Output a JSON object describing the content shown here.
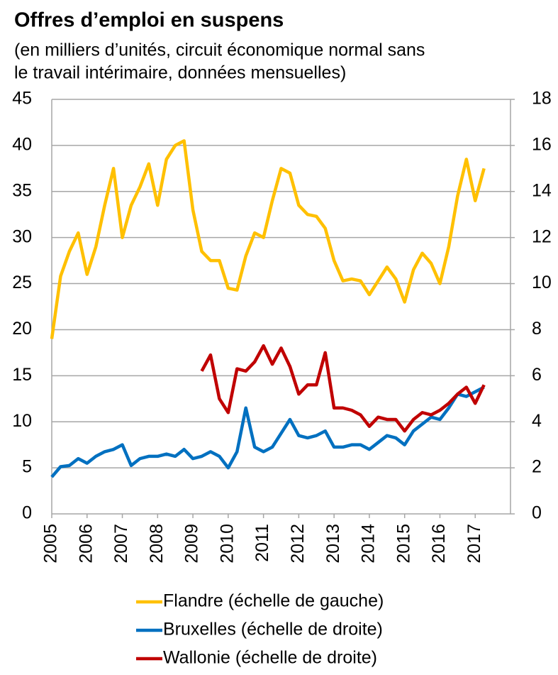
{
  "chart_data": {
    "type": "line",
    "title": "Offres d’emploi en suspens",
    "subtitle": [
      "(en milliers d’unités, circuit économique normal sans",
      "le travail intérimaire, données mensuelles)"
    ],
    "x": [
      2005,
      2005.25,
      2005.5,
      2005.75,
      2006,
      2006.25,
      2006.5,
      2006.75,
      2007,
      2007.25,
      2007.5,
      2007.75,
      2008,
      2008.25,
      2008.5,
      2008.75,
      2009,
      2009.25,
      2009.5,
      2009.75,
      2010,
      2010.25,
      2010.5,
      2010.75,
      2011,
      2011.25,
      2011.5,
      2011.75,
      2012,
      2012.25,
      2012.5,
      2012.75,
      2013,
      2013.25,
      2013.5,
      2013.75,
      2014,
      2014.25,
      2014.5,
      2014.75,
      2015,
      2015.25,
      2015.5,
      2015.75,
      2016,
      2016.25,
      2016.5,
      2016.75,
      2017,
      2017.25
    ],
    "series": [
      {
        "name": "Flandre (échelle de gauche)",
        "color": "#ffc000",
        "axis": "y",
        "values": [
          19,
          25.8,
          28.5,
          30.5,
          26,
          29,
          33.5,
          37.5,
          30,
          33.5,
          35.5,
          38,
          33.5,
          38.5,
          40,
          40.5,
          33,
          28.5,
          27.5,
          27.5,
          24.5,
          24.3,
          28,
          30.5,
          30,
          34,
          37.5,
          37,
          33.5,
          32.5,
          32.3,
          31,
          27.5,
          25.3,
          25.5,
          25.3,
          23.8,
          25.3,
          26.8,
          25.5,
          23,
          26.5,
          28.3,
          27.2,
          25,
          29,
          34.5,
          38.5,
          34,
          37.5
        ]
      },
      {
        "name": "Bruxelles (échelle de droite)",
        "color": "#0070c0",
        "axis": "y2",
        "values": [
          1.6,
          2.05,
          2.1,
          2.4,
          2.2,
          2.5,
          2.7,
          2.8,
          3.0,
          2.1,
          2.4,
          2.5,
          2.5,
          2.6,
          2.5,
          2.8,
          2.4,
          2.5,
          2.7,
          2.5,
          2.0,
          2.7,
          4.6,
          2.9,
          2.7,
          2.9,
          3.5,
          4.1,
          3.4,
          3.3,
          3.4,
          3.6,
          2.9,
          2.9,
          3.0,
          3.0,
          2.8,
          3.1,
          3.4,
          3.3,
          3.0,
          3.6,
          3.9,
          4.2,
          4.1,
          4.6,
          5.2,
          5.1,
          5.3,
          5.5
        ]
      },
      {
        "name": "Wallonie (échelle de droite)",
        "color": "#c00000",
        "axis": "y2",
        "values": [
          null,
          null,
          null,
          null,
          null,
          null,
          null,
          null,
          null,
          null,
          null,
          null,
          null,
          null,
          null,
          null,
          null,
          6.2,
          6.9,
          5.0,
          4.4,
          6.3,
          6.2,
          6.6,
          7.3,
          6.5,
          7.2,
          6.4,
          5.2,
          5.6,
          5.6,
          7.0,
          4.6,
          4.6,
          4.5,
          4.3,
          3.8,
          4.2,
          4.1,
          4.1,
          3.6,
          4.1,
          4.4,
          4.3,
          4.5,
          4.8,
          5.2,
          5.5,
          4.8,
          5.6
        ]
      }
    ],
    "xlim": [
      2005,
      2018
    ],
    "xticks": [
      2005,
      2006,
      2007,
      2008,
      2009,
      2010,
      2011,
      2012,
      2013,
      2014,
      2015,
      2016,
      2017
    ],
    "ylim": [
      0,
      45
    ],
    "yticks": [
      0,
      5,
      10,
      15,
      20,
      25,
      30,
      35,
      40,
      45
    ],
    "y2lim": [
      0,
      18
    ],
    "y2ticks": [
      0,
      2,
      4,
      6,
      8,
      10,
      12,
      14,
      16,
      18
    ],
    "grid": true
  }
}
